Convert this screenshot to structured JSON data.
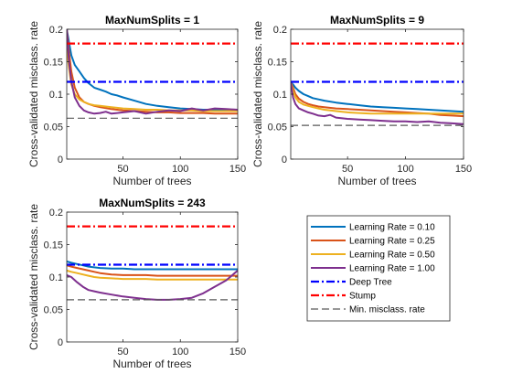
{
  "chart_data": [
    {
      "type": "line",
      "title": "MaxNumSplits = 1",
      "xlabel": "Number of trees",
      "ylabel": "Cross-validated misclass. rate",
      "xlim": [
        1,
        150
      ],
      "ylim": [
        0,
        0.2
      ],
      "xticks": [
        50,
        100,
        150
      ],
      "yticks": [
        0,
        0.05,
        0.1,
        0.15,
        0.2
      ],
      "xtick_labels": [
        "50",
        "100",
        "150"
      ],
      "ytick_labels": [
        "0",
        "0.05",
        "0.1",
        "0.15",
        "0.2"
      ],
      "series": [
        {
          "name": "Learning Rate = 0.10",
          "color": "#0072BD",
          "style": "solid",
          "x": [
            1,
            3,
            5,
            8,
            12,
            16,
            20,
            25,
            30,
            35,
            40,
            45,
            50,
            60,
            70,
            80,
            90,
            100,
            110,
            120,
            130,
            140,
            150
          ],
          "y": [
            0.2,
            0.18,
            0.16,
            0.145,
            0.135,
            0.125,
            0.117,
            0.11,
            0.107,
            0.104,
            0.1,
            0.098,
            0.095,
            0.09,
            0.085,
            0.082,
            0.08,
            0.078,
            0.077,
            0.076,
            0.076,
            0.076,
            0.076
          ]
        },
        {
          "name": "Learning Rate = 0.25",
          "color": "#D95319",
          "style": "solid",
          "x": [
            1,
            3,
            5,
            8,
            12,
            16,
            20,
            25,
            30,
            40,
            50,
            60,
            70,
            80,
            90,
            100,
            110,
            120,
            130,
            140,
            150
          ],
          "y": [
            0.2,
            0.165,
            0.135,
            0.11,
            0.095,
            0.088,
            0.085,
            0.082,
            0.08,
            0.077,
            0.075,
            0.074,
            0.073,
            0.072,
            0.072,
            0.071,
            0.071,
            0.071,
            0.07,
            0.07,
            0.07
          ]
        },
        {
          "name": "Learning Rate = 0.50",
          "color": "#EDB120",
          "style": "solid",
          "x": [
            1,
            3,
            5,
            8,
            12,
            16,
            20,
            25,
            30,
            40,
            50,
            60,
            70,
            80,
            90,
            100,
            110,
            120,
            130,
            140,
            150
          ],
          "y": [
            0.17,
            0.14,
            0.115,
            0.1,
            0.092,
            0.088,
            0.085,
            0.083,
            0.082,
            0.08,
            0.078,
            0.077,
            0.076,
            0.076,
            0.075,
            0.075,
            0.075,
            0.074,
            0.074,
            0.074,
            0.074
          ]
        },
        {
          "name": "Learning Rate = 1.00",
          "color": "#7E2F8E",
          "style": "solid",
          "x": [
            1,
            3,
            5,
            8,
            12,
            16,
            20,
            25,
            30,
            35,
            40,
            50,
            60,
            70,
            80,
            90,
            100,
            110,
            120,
            130,
            140,
            150
          ],
          "y": [
            0.2,
            0.15,
            0.12,
            0.095,
            0.082,
            0.075,
            0.072,
            0.07,
            0.071,
            0.073,
            0.07,
            0.072,
            0.074,
            0.07,
            0.073,
            0.075,
            0.074,
            0.078,
            0.075,
            0.078,
            0.077,
            0.076
          ]
        },
        {
          "name": "Deep Tree",
          "color": "#0000FF",
          "style": "dashdot",
          "x": [
            1,
            150
          ],
          "y": [
            0.119,
            0.119
          ]
        },
        {
          "name": "Stump",
          "color": "#FF0000",
          "style": "dashdot",
          "x": [
            1,
            150
          ],
          "y": [
            0.178,
            0.178
          ]
        },
        {
          "name": "Min. misclass. rate",
          "color": "#595959",
          "style": "dashed",
          "x": [
            1,
            150
          ],
          "y": [
            0.063,
            0.063
          ]
        }
      ]
    },
    {
      "type": "line",
      "title": "MaxNumSplits = 9",
      "xlabel": "Number of trees",
      "ylabel": "Cross-validated misclass. rate",
      "xlim": [
        1,
        150
      ],
      "ylim": [
        0,
        0.2
      ],
      "xticks": [
        50,
        100,
        150
      ],
      "yticks": [
        0,
        0.05,
        0.1,
        0.15,
        0.2
      ],
      "xtick_labels": [
        "50",
        "100",
        "150"
      ],
      "ytick_labels": [
        "0",
        "0.05",
        "0.1",
        "0.15",
        "0.2"
      ],
      "series": [
        {
          "name": "Learning Rate = 0.10",
          "color": "#0072BD",
          "style": "solid",
          "x": [
            1,
            3,
            5,
            8,
            12,
            16,
            20,
            25,
            30,
            40,
            50,
            60,
            70,
            80,
            90,
            100,
            110,
            120,
            130,
            140,
            150
          ],
          "y": [
            0.118,
            0.115,
            0.11,
            0.105,
            0.1,
            0.097,
            0.094,
            0.092,
            0.09,
            0.087,
            0.085,
            0.083,
            0.081,
            0.08,
            0.079,
            0.078,
            0.077,
            0.076,
            0.075,
            0.074,
            0.073
          ]
        },
        {
          "name": "Learning Rate = 0.25",
          "color": "#D95319",
          "style": "solid",
          "x": [
            1,
            3,
            5,
            8,
            12,
            16,
            20,
            25,
            30,
            40,
            50,
            60,
            70,
            80,
            90,
            100,
            110,
            120,
            130,
            140,
            150
          ],
          "y": [
            0.118,
            0.11,
            0.1,
            0.093,
            0.088,
            0.085,
            0.083,
            0.081,
            0.08,
            0.078,
            0.077,
            0.076,
            0.075,
            0.074,
            0.073,
            0.072,
            0.071,
            0.07,
            0.068,
            0.067,
            0.066
          ]
        },
        {
          "name": "Learning Rate = 0.50",
          "color": "#EDB120",
          "style": "solid",
          "x": [
            1,
            3,
            5,
            8,
            12,
            16,
            20,
            25,
            30,
            40,
            50,
            60,
            70,
            80,
            90,
            100,
            110,
            120,
            130,
            140,
            150
          ],
          "y": [
            0.118,
            0.105,
            0.095,
            0.088,
            0.084,
            0.082,
            0.08,
            0.078,
            0.076,
            0.074,
            0.072,
            0.071,
            0.07,
            0.07,
            0.07,
            0.07,
            0.07,
            0.07,
            0.07,
            0.07,
            0.07
          ]
        },
        {
          "name": "Learning Rate = 1.00",
          "color": "#7E2F8E",
          "style": "solid",
          "x": [
            1,
            3,
            5,
            8,
            12,
            16,
            20,
            25,
            30,
            35,
            40,
            50,
            60,
            70,
            80,
            90,
            100,
            110,
            120,
            130,
            140,
            150
          ],
          "y": [
            0.118,
            0.095,
            0.085,
            0.078,
            0.075,
            0.072,
            0.07,
            0.067,
            0.066,
            0.068,
            0.064,
            0.062,
            0.061,
            0.06,
            0.059,
            0.058,
            0.058,
            0.057,
            0.058,
            0.056,
            0.055,
            0.054
          ]
        },
        {
          "name": "Deep Tree",
          "color": "#0000FF",
          "style": "dashdot",
          "x": [
            1,
            150
          ],
          "y": [
            0.119,
            0.119
          ]
        },
        {
          "name": "Stump",
          "color": "#FF0000",
          "style": "dashdot",
          "x": [
            1,
            150
          ],
          "y": [
            0.178,
            0.178
          ]
        },
        {
          "name": "Min. misclass. rate",
          "color": "#595959",
          "style": "dashed",
          "x": [
            1,
            150
          ],
          "y": [
            0.052,
            0.052
          ]
        }
      ]
    },
    {
      "type": "line",
      "title": "MaxNumSplits = 243",
      "xlabel": "Number of trees",
      "ylabel": "Cross-validated misclass. rate",
      "xlim": [
        1,
        150
      ],
      "ylim": [
        0,
        0.2
      ],
      "xticks": [
        50,
        100,
        150
      ],
      "yticks": [
        0,
        0.05,
        0.1,
        0.15,
        0.2
      ],
      "xtick_labels": [
        "50",
        "100",
        "150"
      ],
      "ytick_labels": [
        "0",
        "0.05",
        "0.1",
        "0.15",
        "0.2"
      ],
      "series": [
        {
          "name": "Learning Rate = 0.10",
          "color": "#0072BD",
          "style": "solid",
          "x": [
            1,
            5,
            10,
            15,
            20,
            25,
            30,
            40,
            50,
            60,
            70,
            80,
            90,
            100,
            110,
            120,
            130,
            140,
            150
          ],
          "y": [
            0.124,
            0.122,
            0.12,
            0.118,
            0.116,
            0.115,
            0.114,
            0.113,
            0.113,
            0.112,
            0.112,
            0.112,
            0.112,
            0.112,
            0.112,
            0.112,
            0.112,
            0.112,
            0.112
          ]
        },
        {
          "name": "Learning Rate = 0.25",
          "color": "#D95319",
          "style": "solid",
          "x": [
            1,
            5,
            10,
            15,
            20,
            25,
            30,
            40,
            50,
            60,
            70,
            80,
            90,
            100,
            110,
            120,
            130,
            140,
            150
          ],
          "y": [
            0.118,
            0.116,
            0.114,
            0.112,
            0.11,
            0.108,
            0.106,
            0.104,
            0.103,
            0.103,
            0.103,
            0.102,
            0.102,
            0.102,
            0.102,
            0.102,
            0.102,
            0.102,
            0.102
          ]
        },
        {
          "name": "Learning Rate = 0.50",
          "color": "#EDB120",
          "style": "solid",
          "x": [
            1,
            5,
            10,
            15,
            20,
            25,
            30,
            40,
            50,
            60,
            70,
            80,
            90,
            100,
            110,
            120,
            130,
            140,
            150
          ],
          "y": [
            0.11,
            0.108,
            0.106,
            0.104,
            0.102,
            0.1,
            0.099,
            0.098,
            0.097,
            0.097,
            0.097,
            0.096,
            0.096,
            0.096,
            0.096,
            0.096,
            0.096,
            0.096,
            0.096
          ]
        },
        {
          "name": "Learning Rate = 1.00",
          "color": "#7E2F8E",
          "style": "solid",
          "x": [
            1,
            5,
            10,
            15,
            20,
            25,
            30,
            40,
            50,
            60,
            70,
            80,
            90,
            100,
            110,
            120,
            130,
            140,
            150
          ],
          "y": [
            0.103,
            0.1,
            0.092,
            0.085,
            0.08,
            0.078,
            0.076,
            0.073,
            0.07,
            0.068,
            0.066,
            0.065,
            0.065,
            0.066,
            0.068,
            0.075,
            0.085,
            0.095,
            0.11
          ]
        },
        {
          "name": "Deep Tree",
          "color": "#0000FF",
          "style": "dashdot",
          "x": [
            1,
            150
          ],
          "y": [
            0.119,
            0.119
          ]
        },
        {
          "name": "Stump",
          "color": "#FF0000",
          "style": "dashdot",
          "x": [
            1,
            150
          ],
          "y": [
            0.178,
            0.178
          ]
        },
        {
          "name": "Min. misclass. rate",
          "color": "#595959",
          "style": "dashed",
          "x": [
            1,
            150
          ],
          "y": [
            0.065,
            0.065
          ]
        }
      ]
    }
  ],
  "legend": {
    "entries": [
      {
        "label": "Learning Rate = 0.10",
        "color": "#0072BD",
        "style": "solid"
      },
      {
        "label": "Learning Rate = 0.25",
        "color": "#D95319",
        "style": "solid"
      },
      {
        "label": "Learning Rate = 0.50",
        "color": "#EDB120",
        "style": "solid"
      },
      {
        "label": "Learning Rate = 1.00",
        "color": "#7E2F8E",
        "style": "solid"
      },
      {
        "label": "Deep Tree",
        "color": "#0000FF",
        "style": "dashdot"
      },
      {
        "label": "Stump",
        "color": "#FF0000",
        "style": "dashdot"
      },
      {
        "label": "Min. misclass. rate",
        "color": "#595959",
        "style": "dashed"
      }
    ]
  }
}
